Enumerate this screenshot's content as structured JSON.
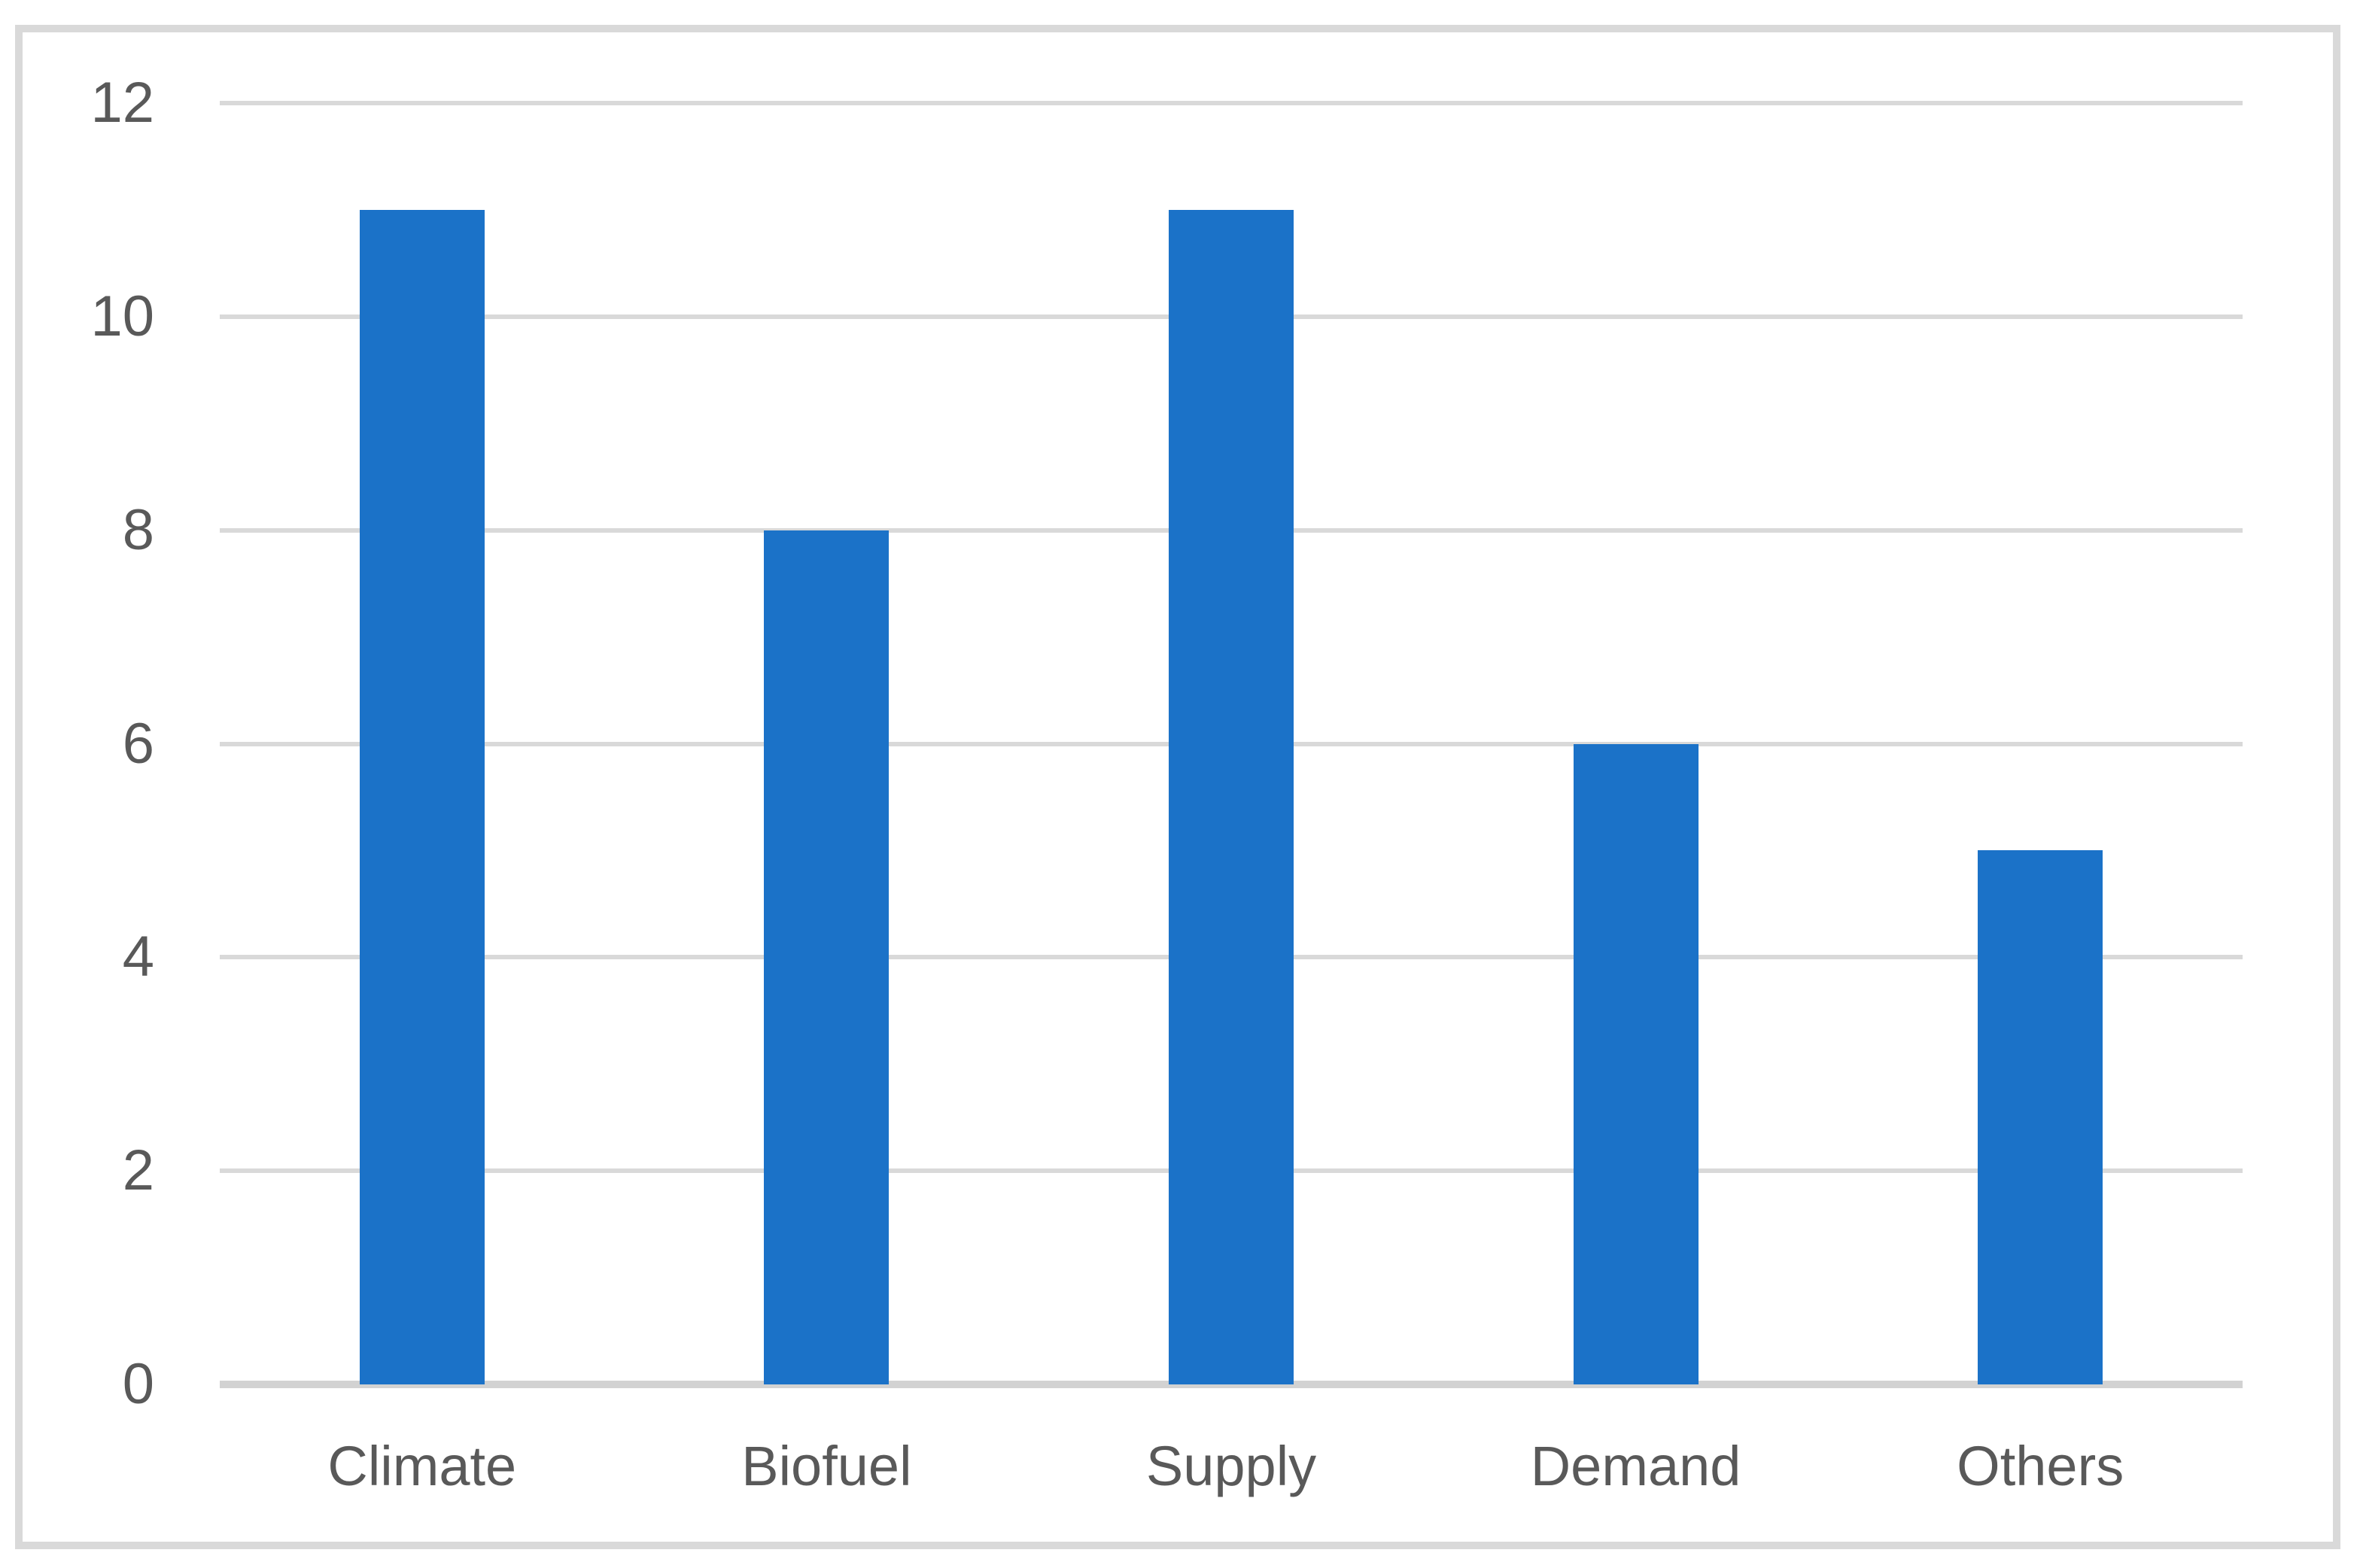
{
  "chart_data": {
    "type": "bar",
    "categories": [
      "Climate",
      "Biofuel",
      "Supply",
      "Demand",
      "Others"
    ],
    "values": [
      11,
      8,
      11,
      6,
      5
    ],
    "title": "",
    "xlabel": "",
    "ylabel": "",
    "ylim": [
      0,
      12
    ],
    "yticks": [
      0,
      2,
      4,
      6,
      8,
      10,
      12
    ],
    "grid": true,
    "legend_position": "none",
    "bar_color": "#1b72c8"
  },
  "colors": {
    "bar": "#1b72c8",
    "gridline": "#d9d9d9",
    "axis_line": "#d2d2d2",
    "tick_text": "#595959",
    "border": "#d9d9d9",
    "background": "#ffffff"
  }
}
